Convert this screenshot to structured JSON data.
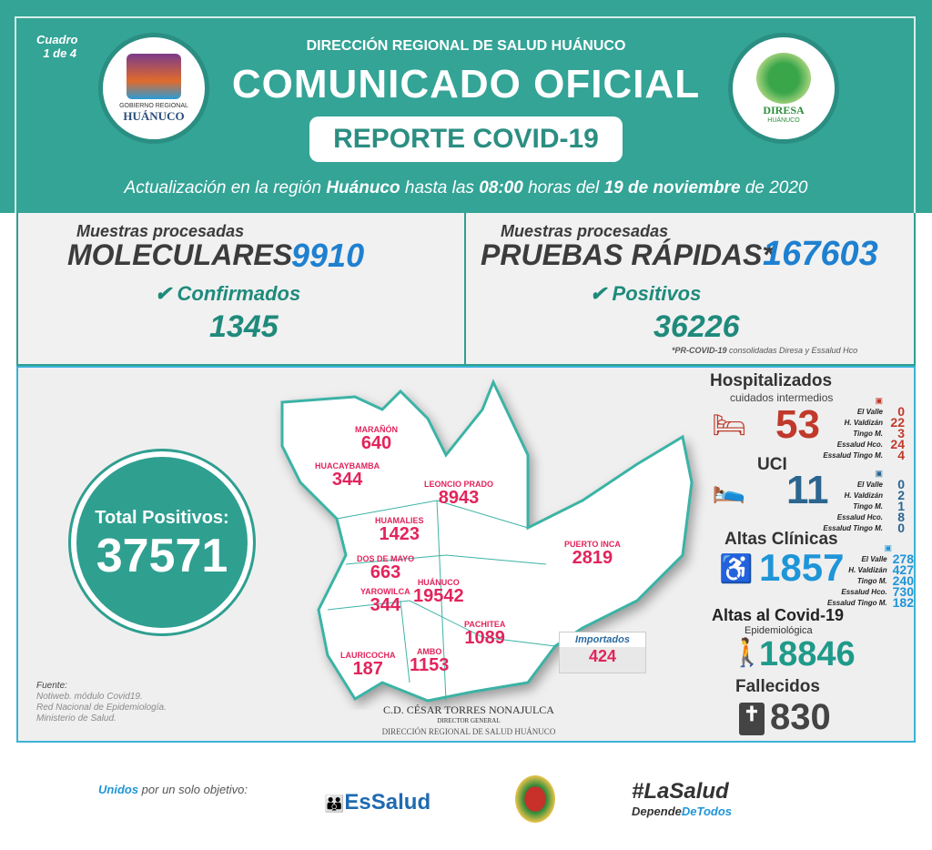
{
  "header": {
    "cuadro": "Cuadro",
    "cuadro_num": "1 de 4",
    "org": "DIRECCIÓN REGIONAL DE SALUD HUÁNUCO",
    "title": "COMUNICADO OFICIAL",
    "subtitle": "REPORTE COVID-19",
    "update_pre": "Actualización en la región ",
    "update_region": "Huánuco",
    "update_mid": " hasta las ",
    "update_time": "08:00",
    "update_mid2": " horas del ",
    "update_date": "19 de noviembre",
    "update_year": " de 2020",
    "logo_left_line1": "GOBIERNO REGIONAL",
    "logo_left_line2": "HUÁNUCO",
    "logo_right_line1": "DIRESA",
    "logo_right_line2": "HUÁNUCO"
  },
  "moleculares": {
    "caption": "Muestras procesadas",
    "label": "MOLECULARES",
    "value": "9910",
    "sub_label": "Confirmados",
    "sub_value": "1345"
  },
  "rapidas": {
    "caption": "Muestras procesadas",
    "label": "PRUEBAS RÁPIDAS*",
    "value": "167603",
    "sub_label": "Positivos",
    "sub_value": "36226",
    "note_bold": "*PR-COVID-19",
    "note": " consolidadas Diresa y Essalud Hco"
  },
  "total": {
    "label": "Total Positivos:",
    "value": "37571"
  },
  "map": {
    "regions": [
      {
        "name": "MARAÑÓN",
        "value": "640"
      },
      {
        "name": "HUACAYBAMBA",
        "value": "344"
      },
      {
        "name": "LEONCIO PRADO",
        "value": "8943"
      },
      {
        "name": "HUAMALIES",
        "value": "1423"
      },
      {
        "name": "DOS DE MAYO",
        "value": "663"
      },
      {
        "name": "YAROWILCA",
        "value": "344"
      },
      {
        "name": "HUÁNUCO",
        "value": "19542"
      },
      {
        "name": "PUERTO INCA",
        "value": "2819"
      },
      {
        "name": "PACHITEA",
        "value": "1089"
      },
      {
        "name": "LAURICOCHA",
        "value": "187"
      },
      {
        "name": "AMBO",
        "value": "1153"
      }
    ],
    "imported_label": "Importados",
    "imported_value": "424"
  },
  "hospitalizados": {
    "title": "Hospitalizados",
    "subtitle": "cuidados intermedios",
    "total": "53",
    "color": "#c0392b",
    "rows": [
      {
        "h": "El Valle",
        "v": "0"
      },
      {
        "h": "H. Valdizán",
        "v": "22"
      },
      {
        "h": "Tingo M.",
        "v": "3"
      },
      {
        "h": "Essalud Hco.",
        "v": "24"
      },
      {
        "h": "Essalud Tingo M.",
        "v": "4"
      }
    ]
  },
  "uci": {
    "title": "UCI",
    "total": "11",
    "color": "#2b6590",
    "rows": [
      {
        "h": "El Valle",
        "v": "0"
      },
      {
        "h": "H. Valdizán",
        "v": "2"
      },
      {
        "h": "Tingo M.",
        "v": "1"
      },
      {
        "h": "Essalud Hco.",
        "v": "8"
      },
      {
        "h": "Essalud Tingo M.",
        "v": "0"
      }
    ]
  },
  "altas": {
    "title": "Altas Clínicas",
    "total": "1857",
    "color": "#1f95d8",
    "rows": [
      {
        "h": "El Valle",
        "v": "278"
      },
      {
        "h": "H. Valdizán",
        "v": "427"
      },
      {
        "h": "Tingo M.",
        "v": "240"
      },
      {
        "h": "Essalud Hco.",
        "v": "730"
      },
      {
        "h": "Essalud Tingo M.",
        "v": "182"
      }
    ]
  },
  "altas_covid": {
    "title": "Altas al Covid-19",
    "subtitle": "Epidemiológica",
    "total": "18846"
  },
  "fallecidos": {
    "title": "Fallecidos",
    "total": "830"
  },
  "fuente": {
    "title": "Fuente:",
    "lines": [
      "Notiweb. módulo Covid19.",
      "Red Nacional de Epidemiología.",
      "Ministerio de Salud."
    ]
  },
  "signature": {
    "name": "C.D. CÉSAR TORRES NONAJULCA",
    "role": "DIRECTOR GENERAL",
    "org": "DIRECCIÓN REGIONAL DE SALUD HUÁNUCO"
  },
  "footer": {
    "unidos": "Unidos",
    "slogan": " por un solo objetivo:",
    "essalud": "EsSalud",
    "hashtag": "#LaSalud",
    "hashtag2a": "Depende",
    "hashtag2b": "DeTodos"
  }
}
